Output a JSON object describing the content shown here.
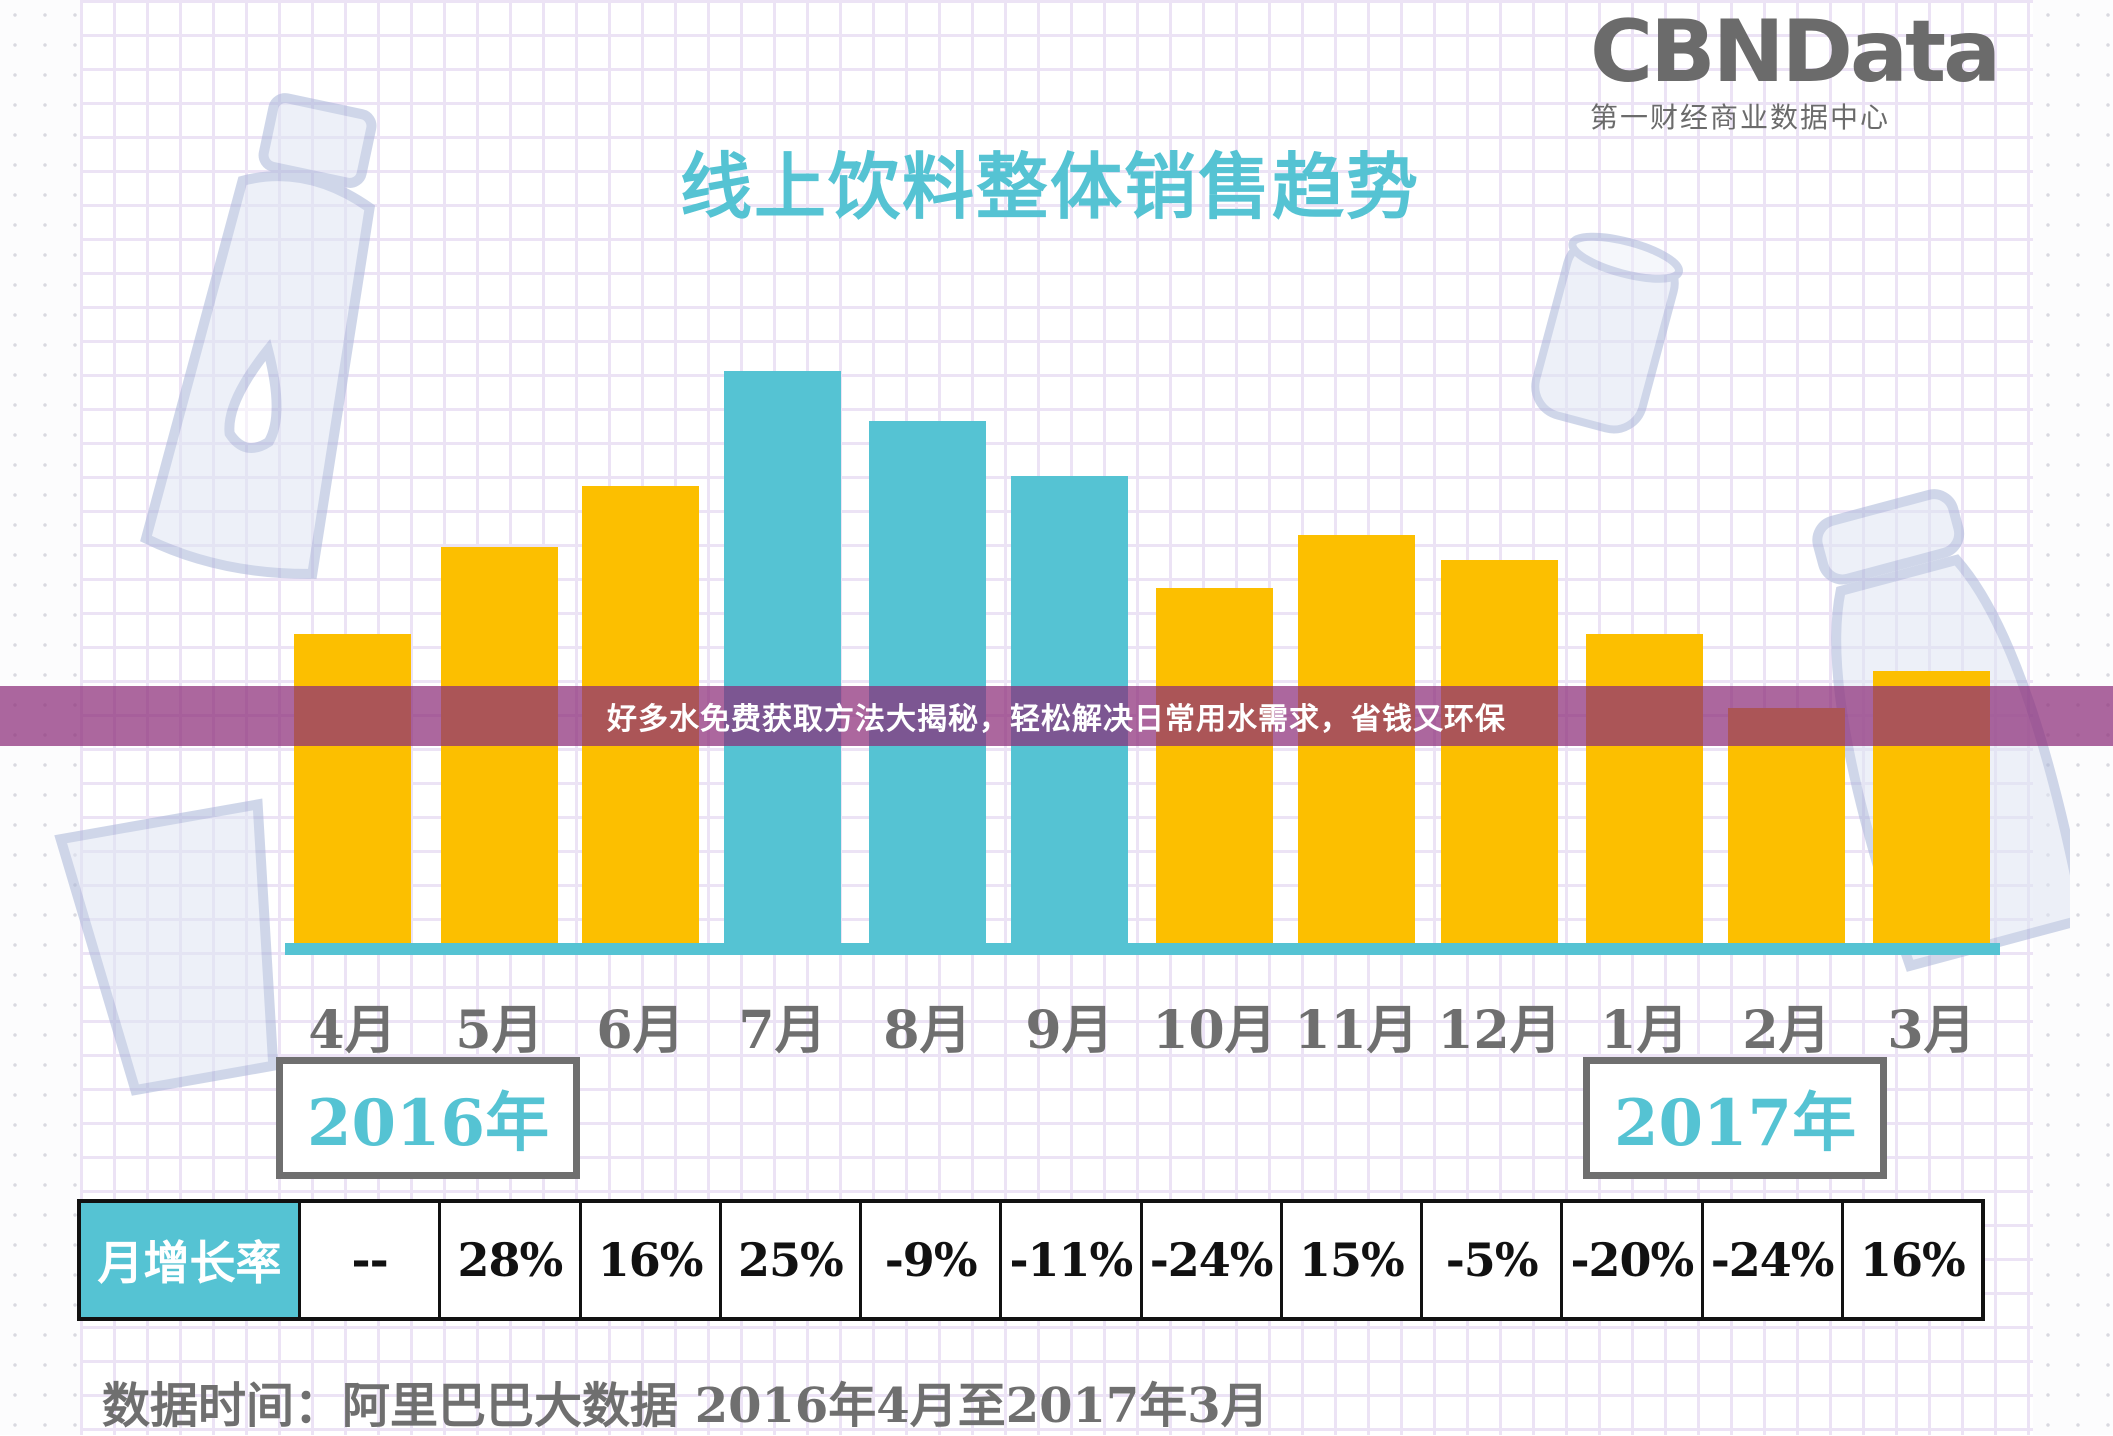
{
  "logo": {
    "main": "CBNData",
    "sub": "第一财经商业数据中心"
  },
  "title": "线上饮料整体销售趋势",
  "banner": {
    "text": "好多水免费获取方法大揭秘，轻松解决日常用水需求，省钱又环保"
  },
  "years": {
    "left": "2016年",
    "right": "2017年"
  },
  "table": {
    "header": "月增长率",
    "values": [
      "--",
      "28%",
      "16%",
      "25%",
      "-9%",
      "-11%",
      "-24%",
      "15%",
      "-5%",
      "-20%",
      "-24%",
      "16%"
    ]
  },
  "footer": "数据时间：阿里巴巴大数据 2016年4月至2017年3月",
  "colors": {
    "yellow": "#fcbf00",
    "teal": "#55c3d3",
    "banner": "#8c2d78",
    "text_gray": "#6f6f6f"
  },
  "chart_data": {
    "type": "bar",
    "title": "线上饮料整体销售趋势",
    "categories": [
      "4月",
      "5月",
      "6月",
      "7月",
      "8月",
      "9月",
      "10月",
      "11月",
      "12月",
      "1月",
      "2月",
      "3月"
    ],
    "values": [
      100,
      128,
      148,
      185,
      169,
      151,
      115,
      132,
      124,
      100,
      76,
      88
    ],
    "value_note": "relative bar heights (no y-axis shown); 4月 indexed to 100",
    "bar_colors": [
      "#fcbf00",
      "#fcbf00",
      "#fcbf00",
      "#55c3d3",
      "#55c3d3",
      "#55c3d3",
      "#fcbf00",
      "#fcbf00",
      "#fcbf00",
      "#fcbf00",
      "#fcbf00",
      "#fcbf00"
    ],
    "monthly_growth": [
      "--",
      "28%",
      "16%",
      "25%",
      "-9%",
      "-11%",
      "-24%",
      "15%",
      "-5%",
      "-20%",
      "-24%",
      "16%"
    ],
    "year_groups": [
      {
        "label": "2016年",
        "from": "4月",
        "to": "12月"
      },
      {
        "label": "2017年",
        "from": "1月",
        "to": "3月"
      }
    ],
    "xlabel": "",
    "ylabel": "",
    "grid": false,
    "legend": null,
    "source": "数据时间：阿里巴巴大数据 2016年4月至2017年3月"
  }
}
